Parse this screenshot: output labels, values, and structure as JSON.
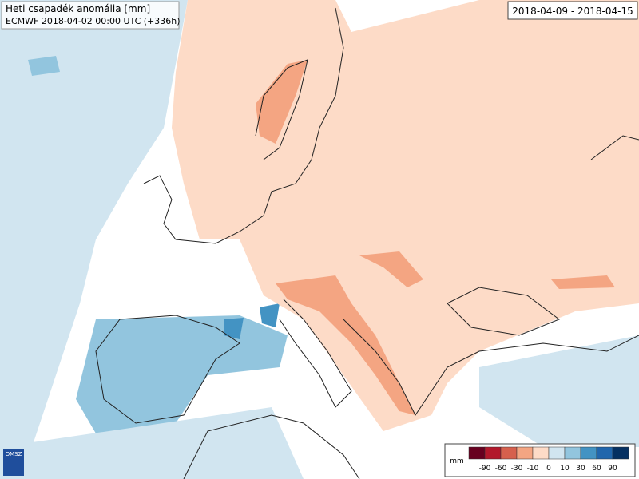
{
  "header": {
    "title": "Heti csapadék anomália [mm]",
    "subtitle": "ECMWF 2018-04-02 00:00 UTC (+336h)"
  },
  "date_range": "2018-04-09 - 2018-04-15",
  "logo": "OMSZ",
  "legend": {
    "unit": "mm",
    "ticks": [
      -90,
      -60,
      -30,
      -10,
      0,
      10,
      30,
      60,
      90
    ],
    "colors": [
      "#67001f",
      "#b2182b",
      "#d6604d",
      "#f4a582",
      "#fddbc7",
      "#d1e5f0",
      "#92c5de",
      "#4393c3",
      "#2166ac",
      "#053061"
    ]
  }
}
